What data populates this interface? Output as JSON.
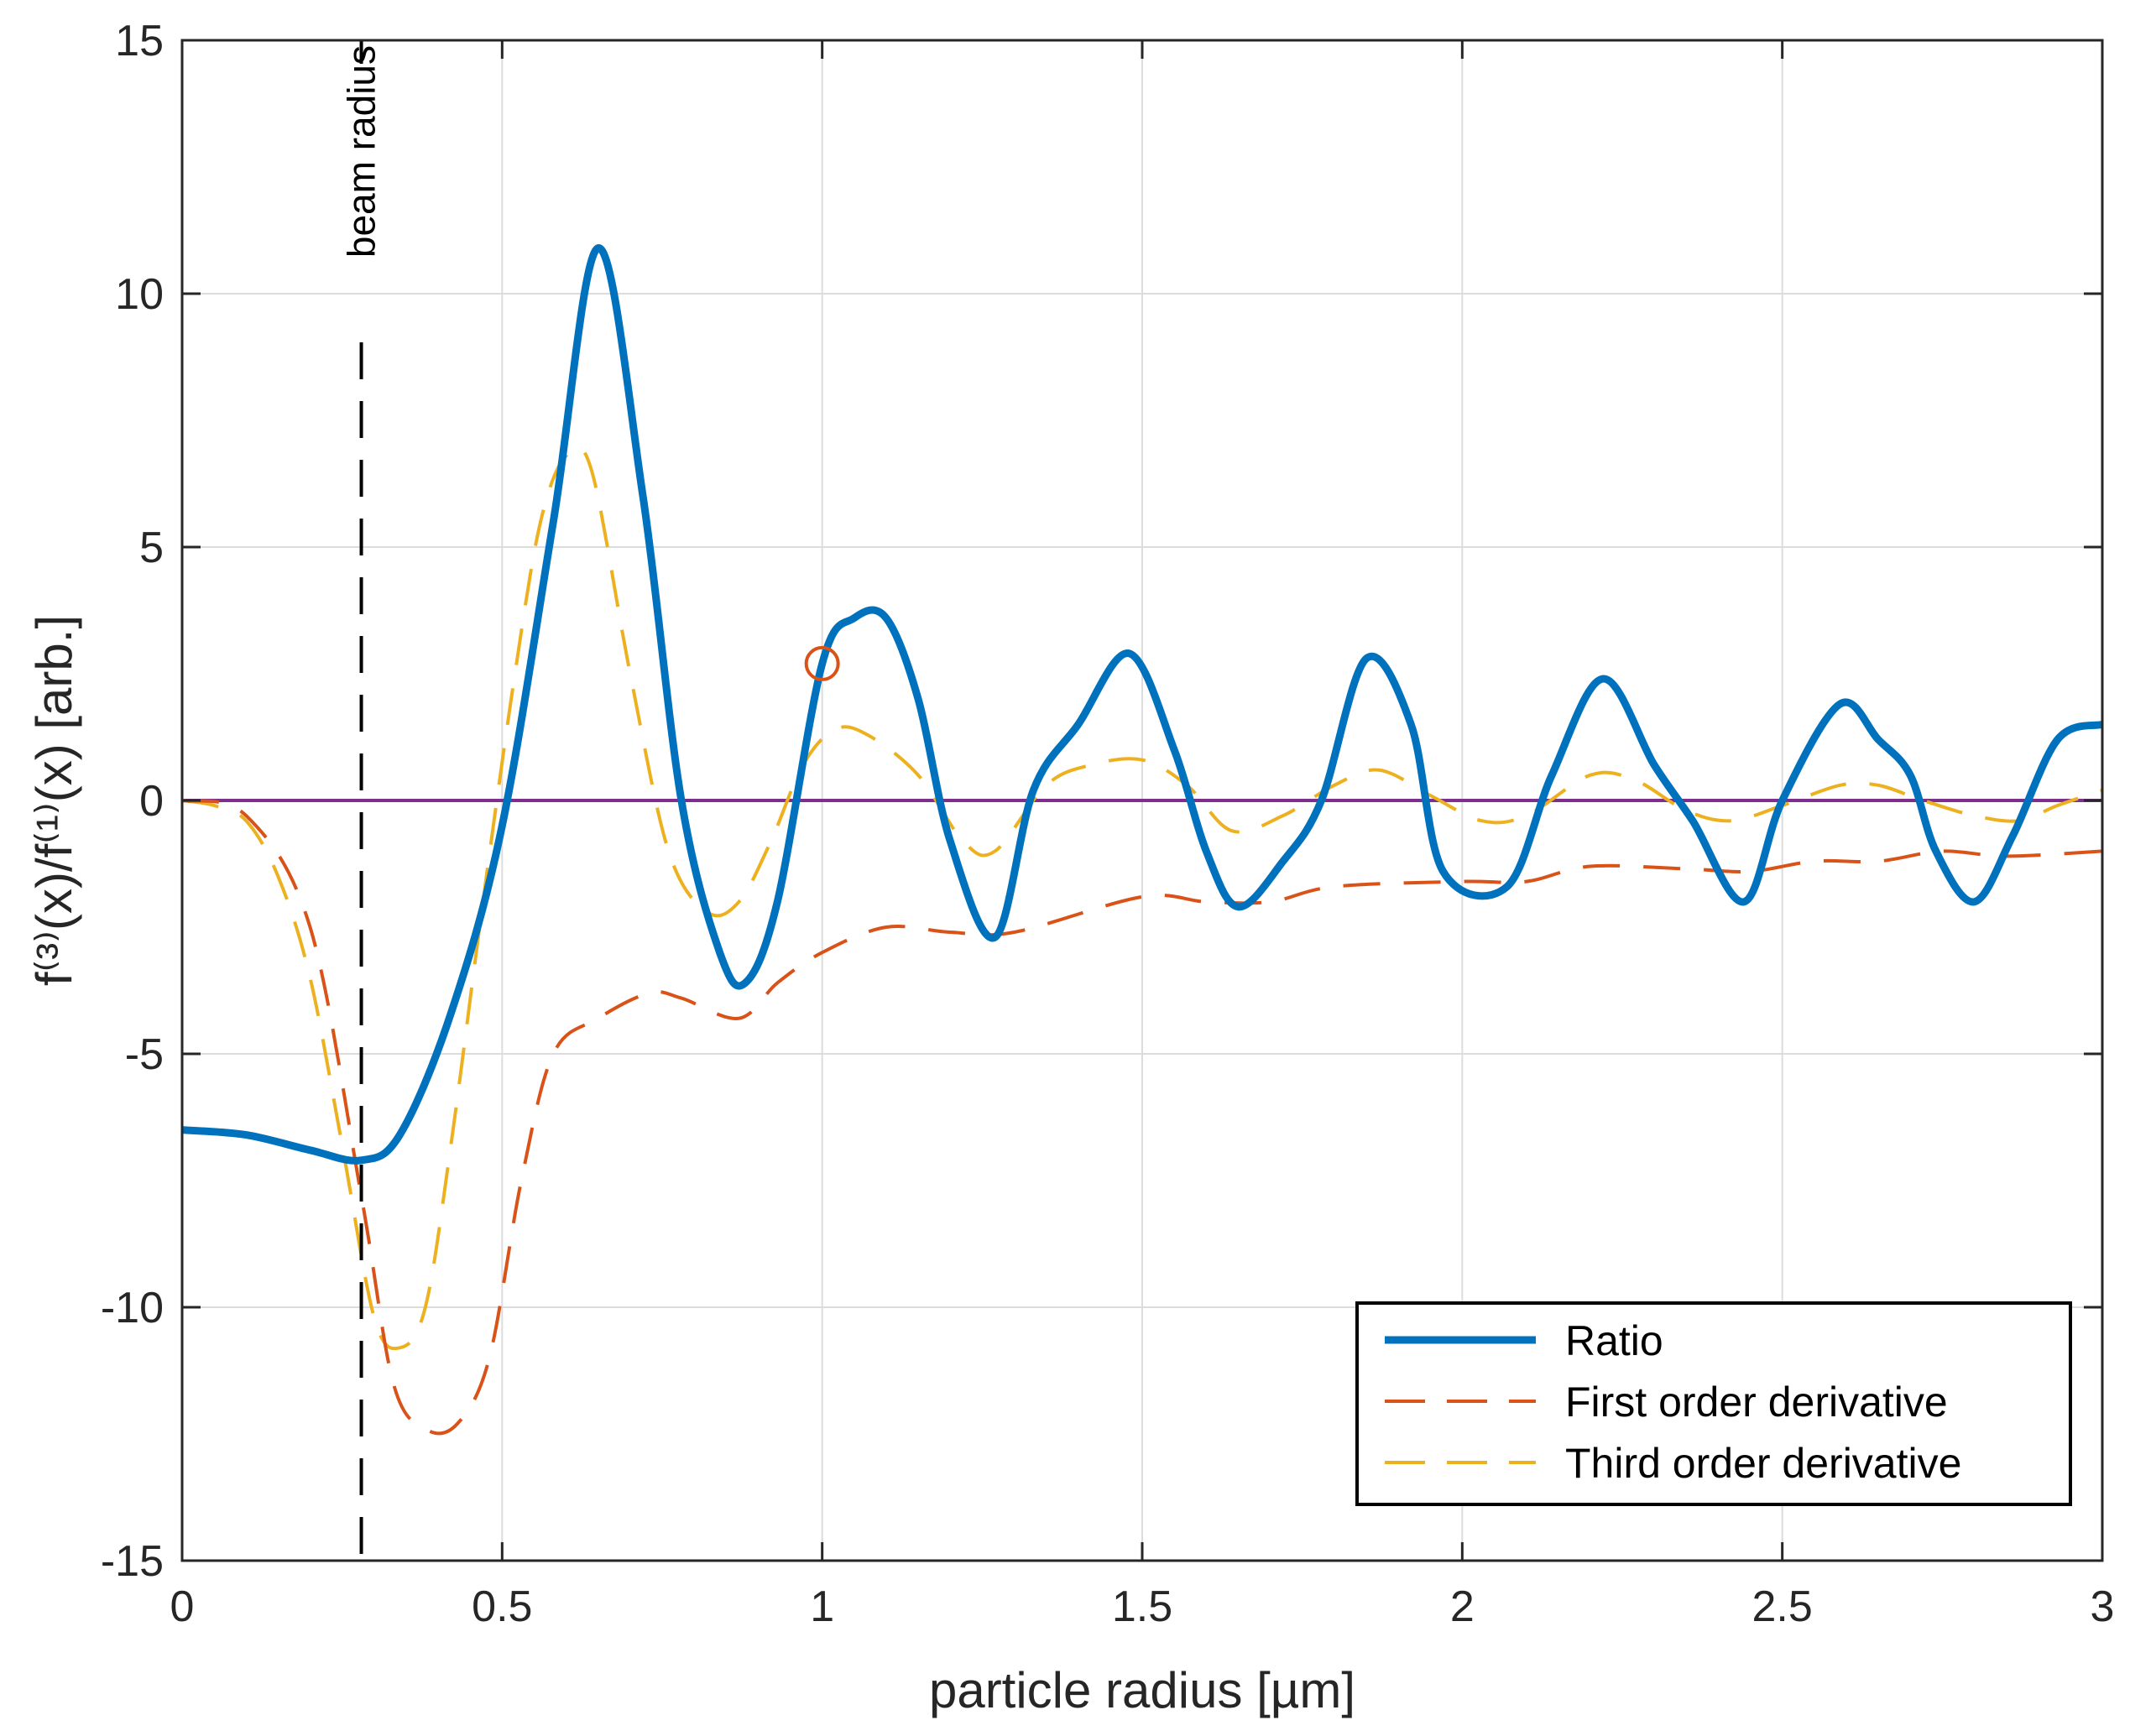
{
  "chart_data": {
    "type": "line",
    "title": "",
    "xlabel": "particle radius [µm]",
    "ylabel": "f⁽³⁾(x)/f⁽¹⁾(x) [arb.]",
    "xlim": [
      0,
      3
    ],
    "ylim": [
      -15,
      15
    ],
    "xticks": [
      0,
      0.5,
      1,
      1.5,
      2,
      2.5,
      3
    ],
    "xtick_labels": [
      "0",
      "0.5",
      "1",
      "1.5",
      "2",
      "2.5",
      "3"
    ],
    "yticks": [
      -15,
      -10,
      -5,
      0,
      5,
      10,
      15
    ],
    "ytick_labels": [
      "-15",
      "-10",
      "-5",
      "0",
      "5",
      "10",
      "15"
    ],
    "grid": true,
    "legend_position": "bottom-right",
    "series": [
      {
        "name": "Ratio",
        "color": "#0072BD",
        "style": "solid",
        "x": [
          0,
          0.1,
          0.2,
          0.28,
          0.34,
          0.42,
          0.5,
          0.58,
          0.65,
          0.72,
          0.78,
          0.84,
          0.88,
          0.93,
          1.0,
          1.05,
          1.1,
          1.15,
          1.2,
          1.27,
          1.33,
          1.4,
          1.48,
          1.55,
          1.6,
          1.65,
          1.72,
          1.78,
          1.85,
          1.92,
          1.97,
          2.07,
          2.14,
          2.22,
          2.3,
          2.36,
          2.44,
          2.5,
          2.59,
          2.65,
          2.7,
          2.74,
          2.8,
          2.86,
          2.93,
          3.0
        ],
        "y": [
          -6.5,
          -6.6,
          -6.9,
          -7.1,
          -6.6,
          -4.2,
          -0.5,
          5.5,
          10.9,
          6.0,
          0.0,
          -3.0,
          -3.6,
          -2.0,
          2.7,
          3.6,
          3.6,
          2.0,
          -0.8,
          -2.7,
          0.2,
          1.5,
          2.9,
          1.0,
          -1.0,
          -2.1,
          -1.2,
          0.0,
          2.8,
          1.5,
          -1.4,
          -1.7,
          0.5,
          2.4,
          0.7,
          -0.4,
          -2.0,
          0.0,
          1.9,
          1.2,
          0.5,
          -1.0,
          -2.0,
          -0.7,
          1.2,
          1.5
        ]
      },
      {
        "name": "First order derivative",
        "color": "#D95319",
        "style": "dashed",
        "x": [
          0,
          0.1,
          0.2,
          0.28,
          0.33,
          0.38,
          0.43,
          0.48,
          0.53,
          0.58,
          0.65,
          0.73,
          0.78,
          0.87,
          0.93,
          1.0,
          1.1,
          1.2,
          1.3,
          1.5,
          1.6,
          1.7,
          1.8,
          2.0,
          2.1,
          2.2,
          2.35,
          2.45,
          2.55,
          2.65,
          2.75,
          2.85,
          3.0
        ],
        "y": [
          0.0,
          -0.3,
          -2.5,
          -7.8,
          -11.5,
          -12.4,
          -12.3,
          -11.0,
          -7.5,
          -5.0,
          -4.3,
          -3.8,
          -3.9,
          -4.3,
          -3.6,
          -3.0,
          -2.5,
          -2.6,
          -2.6,
          -1.9,
          -2.0,
          -2.0,
          -1.7,
          -1.6,
          -1.6,
          -1.3,
          -1.35,
          -1.4,
          -1.2,
          -1.2,
          -1.0,
          -1.1,
          -1.0
        ]
      },
      {
        "name": "Third order derivative",
        "color": "#EDB120",
        "style": "dashed",
        "x": [
          0,
          0.05,
          0.1,
          0.15,
          0.2,
          0.25,
          0.3,
          0.34,
          0.38,
          0.42,
          0.47,
          0.52,
          0.56,
          0.6,
          0.64,
          0.7,
          0.76,
          0.82,
          0.87,
          0.92,
          0.97,
          1.02,
          1.07,
          1.15,
          1.22,
          1.27,
          1.35,
          1.42,
          1.5,
          1.57,
          1.64,
          1.72,
          1.8,
          1.87,
          1.95,
          2.03,
          2.1,
          2.2,
          2.27,
          2.35,
          2.42,
          2.5,
          2.59,
          2.65,
          2.72,
          2.8,
          2.87,
          2.93,
          3.0
        ],
        "y": [
          0.0,
          -0.1,
          -0.4,
          -1.5,
          -3.5,
          -6.8,
          -10.2,
          -10.8,
          -10.0,
          -6.8,
          -2.0,
          2.5,
          5.5,
          6.8,
          6.5,
          2.5,
          -1.0,
          -2.2,
          -2.0,
          -0.8,
          0.7,
          1.4,
          1.3,
          0.5,
          -0.8,
          -1.0,
          0.3,
          0.7,
          0.8,
          0.3,
          -0.6,
          -0.3,
          0.3,
          0.6,
          0.1,
          -0.4,
          -0.3,
          0.5,
          0.4,
          -0.2,
          -0.4,
          -0.1,
          0.3,
          0.3,
          0.0,
          -0.3,
          -0.4,
          -0.1,
          0.2
        ]
      }
    ],
    "zero_line": {
      "y": 0,
      "color": "#7E2F8E"
    },
    "annotations": [
      {
        "type": "vline",
        "x": 0.28,
        "label": "beam radius",
        "color": "#000000",
        "style": "dashed"
      },
      {
        "type": "circle_marker",
        "x": 1.0,
        "y": 2.7,
        "color": "#D95319"
      }
    ]
  }
}
